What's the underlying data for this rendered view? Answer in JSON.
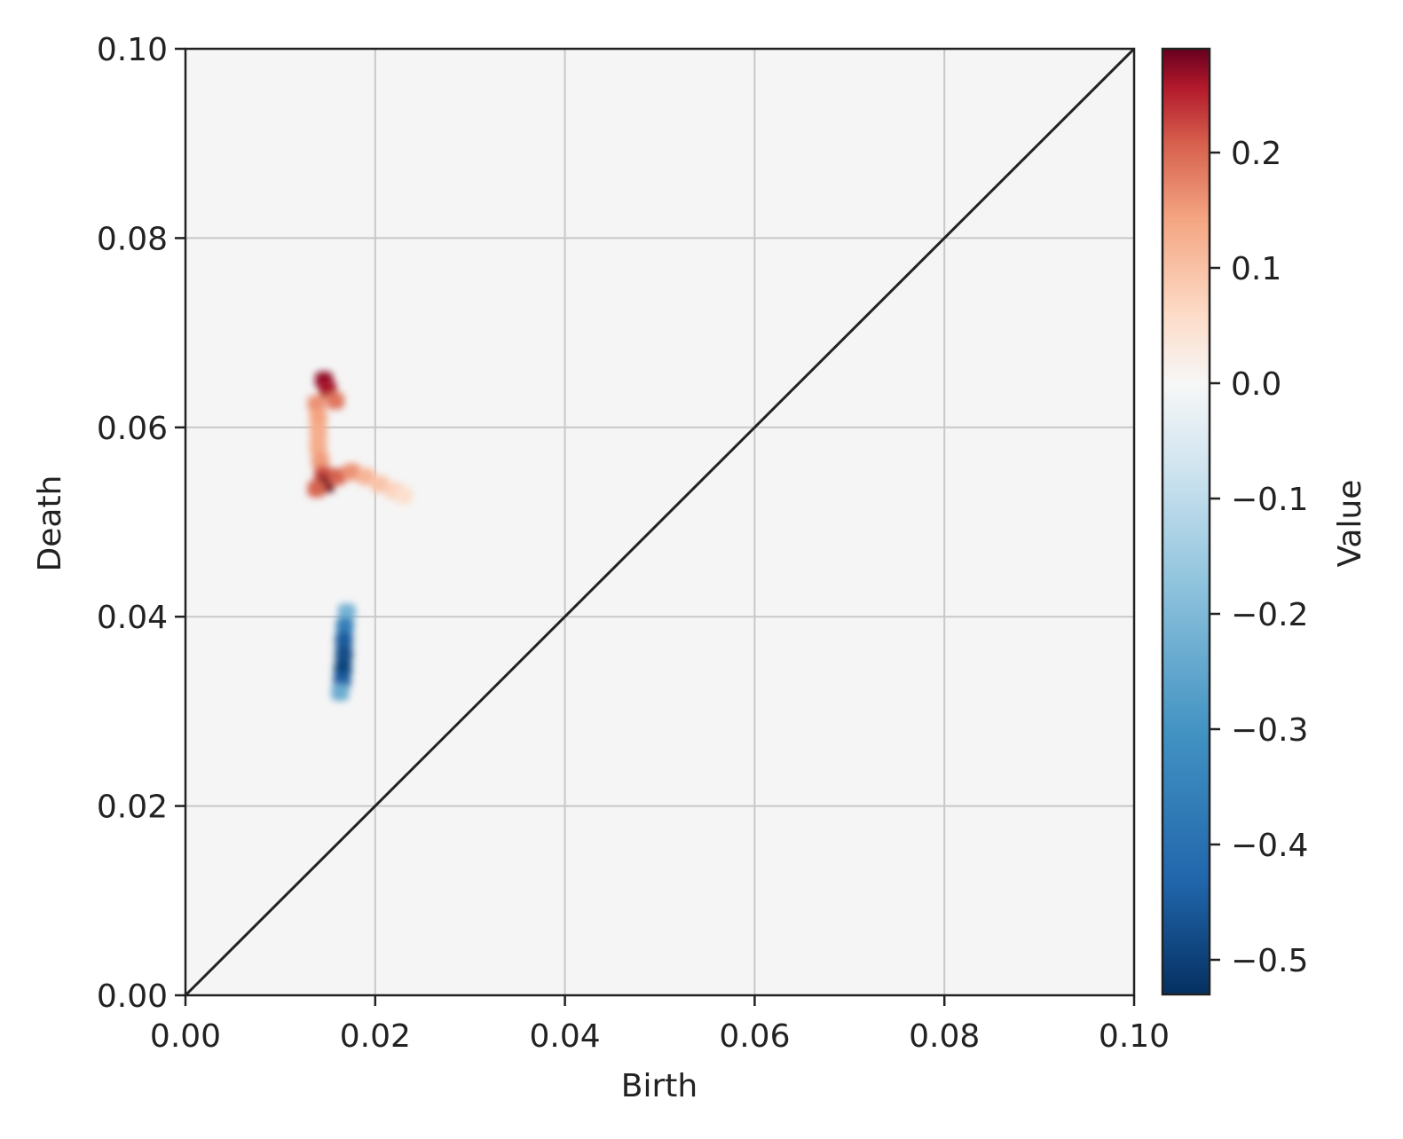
{
  "chart_data": {
    "type": "heatmap",
    "title": "",
    "xlabel": "Birth",
    "ylabel": "Death",
    "xlim": [
      0.0,
      0.1
    ],
    "ylim": [
      0.0,
      0.1
    ],
    "x_ticks": [
      "0.00",
      "0.02",
      "0.04",
      "0.06",
      "0.08",
      "0.10"
    ],
    "y_ticks": [
      "0.00",
      "0.02",
      "0.04",
      "0.06",
      "0.08",
      "0.10"
    ],
    "x_tick_values": [
      0.0,
      0.02,
      0.04,
      0.06,
      0.08,
      0.1
    ],
    "y_tick_values": [
      0.0,
      0.02,
      0.04,
      0.06,
      0.08,
      0.1
    ],
    "grid": true,
    "diagonal_line": true,
    "background_color": "#f5f5f5",
    "colormap": "RdBu_r",
    "colorbar": {
      "label": "Value",
      "range": [
        -0.53,
        0.29
      ],
      "ticks": [
        "0.2",
        "0.1",
        "0.0",
        "−0.1",
        "−0.2",
        "−0.3",
        "−0.4",
        "−0.5"
      ],
      "tick_values": [
        0.2,
        0.1,
        0.0,
        -0.1,
        -0.2,
        -0.3,
        -0.4,
        -0.5
      ]
    },
    "regions": [
      {
        "x": 0.0146,
        "y": 0.065,
        "value": 0.27
      },
      {
        "x": 0.015,
        "y": 0.064,
        "value": 0.26
      },
      {
        "x": 0.0158,
        "y": 0.0628,
        "value": 0.18
      },
      {
        "x": 0.0138,
        "y": 0.0625,
        "value": 0.15
      },
      {
        "x": 0.014,
        "y": 0.061,
        "value": 0.13
      },
      {
        "x": 0.014,
        "y": 0.0595,
        "value": 0.12
      },
      {
        "x": 0.014,
        "y": 0.058,
        "value": 0.12
      },
      {
        "x": 0.0142,
        "y": 0.0565,
        "value": 0.14
      },
      {
        "x": 0.0145,
        "y": 0.055,
        "value": 0.22
      },
      {
        "x": 0.0148,
        "y": 0.054,
        "value": 0.29
      },
      {
        "x": 0.0138,
        "y": 0.0535,
        "value": 0.2
      },
      {
        "x": 0.016,
        "y": 0.0548,
        "value": 0.2
      },
      {
        "x": 0.0175,
        "y": 0.0553,
        "value": 0.15
      },
      {
        "x": 0.019,
        "y": 0.0548,
        "value": 0.11
      },
      {
        "x": 0.0205,
        "y": 0.054,
        "value": 0.09
      },
      {
        "x": 0.022,
        "y": 0.0533,
        "value": 0.07
      },
      {
        "x": 0.023,
        "y": 0.0528,
        "value": 0.05
      },
      {
        "x": 0.017,
        "y": 0.0405,
        "value": -0.18
      },
      {
        "x": 0.0168,
        "y": 0.039,
        "value": -0.32
      },
      {
        "x": 0.0167,
        "y": 0.0375,
        "value": -0.42
      },
      {
        "x": 0.0167,
        "y": 0.036,
        "value": -0.46
      },
      {
        "x": 0.0166,
        "y": 0.0345,
        "value": -0.48
      },
      {
        "x": 0.0165,
        "y": 0.0332,
        "value": -0.42
      },
      {
        "x": 0.0163,
        "y": 0.032,
        "value": -0.2
      }
    ]
  }
}
